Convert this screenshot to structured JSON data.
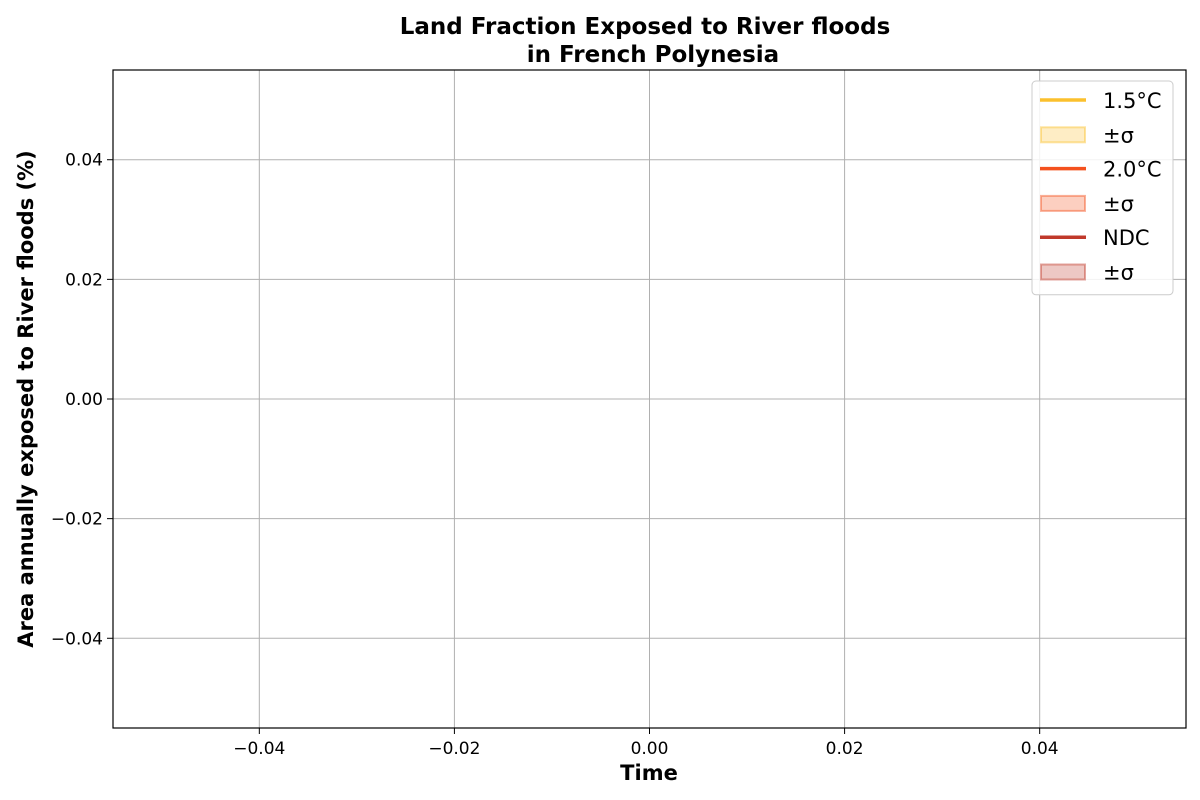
{
  "chart_data": {
    "type": "line",
    "title": [
      "Land Fraction Exposed to River floods",
      "in French Polynesia"
    ],
    "xlabel": "Time",
    "ylabel": "Area annually exposed to River floods (%)",
    "xlim": [
      -0.055,
      0.055
    ],
    "ylim": [
      -0.055,
      0.055
    ],
    "xticks": [
      -0.04,
      -0.02,
      0.0,
      0.02,
      0.04
    ],
    "yticks": [
      -0.04,
      -0.02,
      0.0,
      0.02,
      0.04
    ],
    "xtick_labels": [
      "−0.04",
      "−0.02",
      "0.00",
      "0.02",
      "0.04"
    ],
    "ytick_labels": [
      "−0.04",
      "−0.02",
      "0.00",
      "0.02",
      "0.04"
    ],
    "grid": true,
    "legend_position": "top-right",
    "series": [
      {
        "name": "1.5°C",
        "color": "#fbc02d",
        "values": []
      },
      {
        "name": "2.0°C",
        "color": "#f4511e",
        "values": []
      },
      {
        "name": "NDC",
        "color": "#c0392b",
        "values": []
      }
    ],
    "legend": [
      {
        "label": "1.5°C",
        "kind": "line",
        "color": "#fbc02d"
      },
      {
        "label": "±σ",
        "kind": "band",
        "color": "#fbc02d"
      },
      {
        "label": "2.0°C",
        "kind": "line",
        "color": "#f4511e"
      },
      {
        "label": "±σ",
        "kind": "band",
        "color": "#f4511e"
      },
      {
        "label": "NDC",
        "kind": "line",
        "color": "#c0392b"
      },
      {
        "label": "±σ",
        "kind": "band",
        "color": "#c0392b"
      }
    ]
  }
}
